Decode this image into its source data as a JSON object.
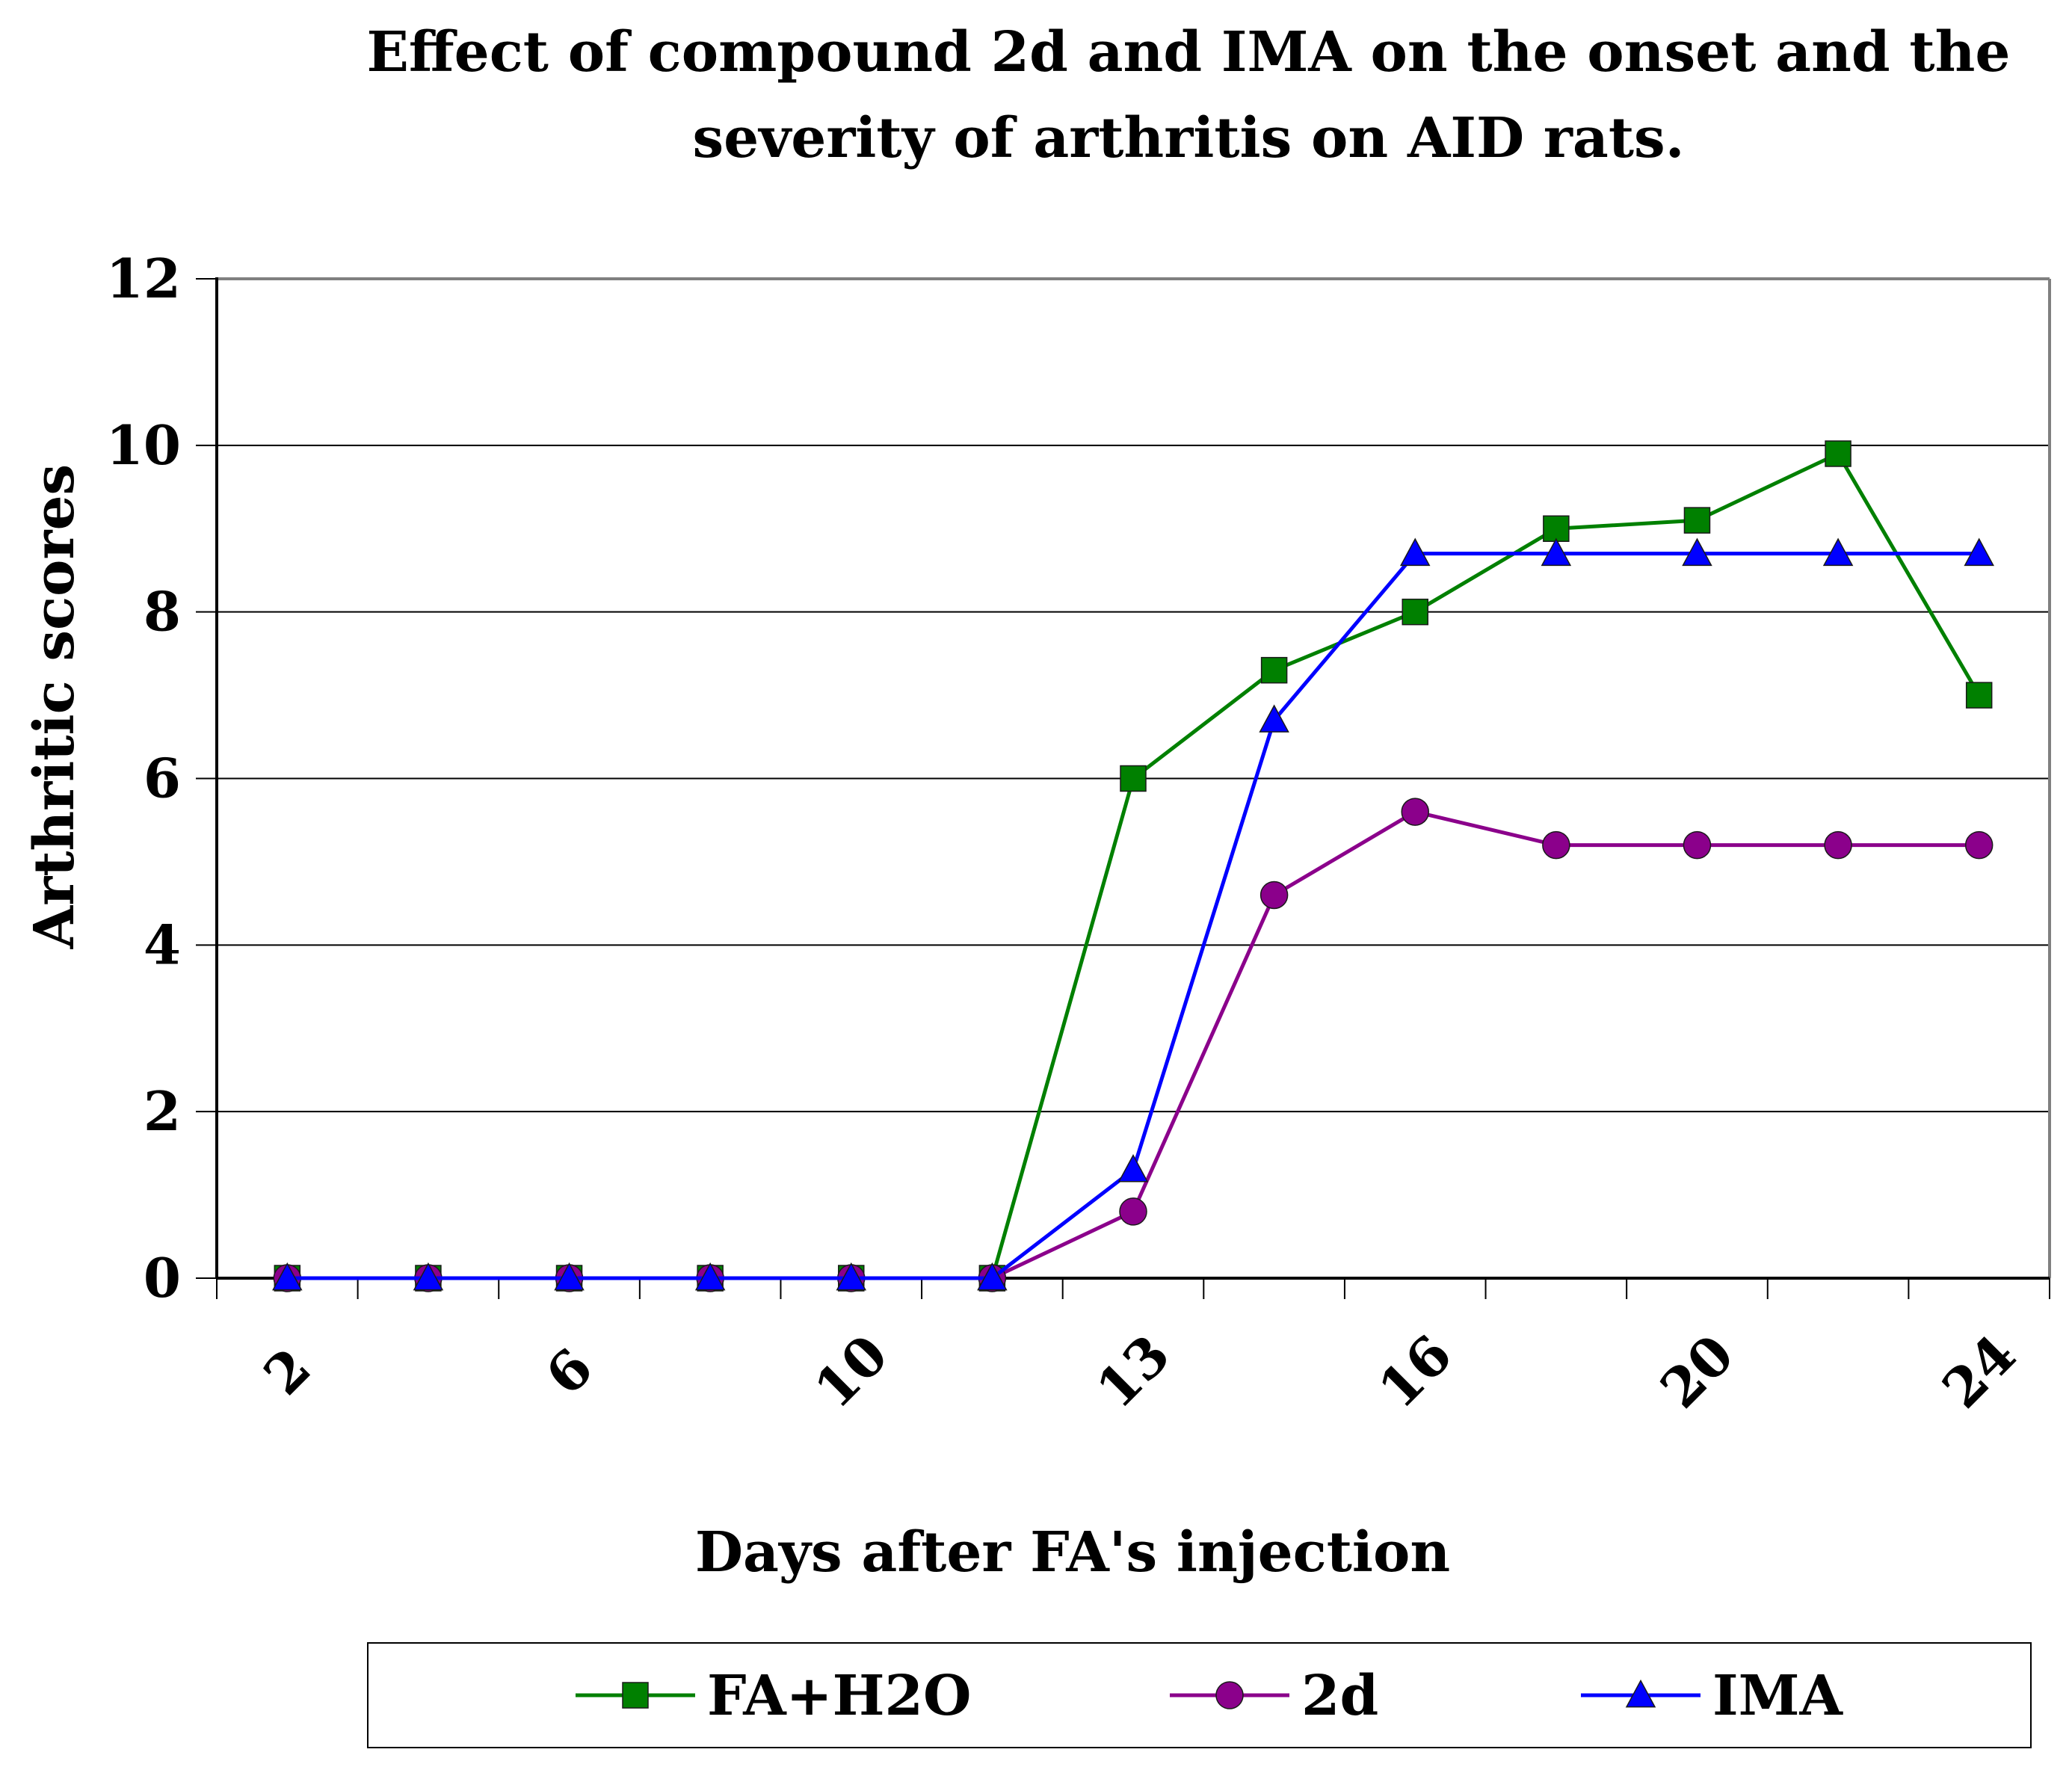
{
  "chart_data": {
    "type": "line",
    "title_lines": [
      "Effect of compound 2d and IMA on the onset and the",
      "severity of arthritis on AID rats."
    ],
    "xlabel": "Days after FA's injection",
    "ylabel": "Arthritic scores",
    "categories": [
      "2",
      "",
      "6",
      "",
      "10",
      "",
      "13",
      "",
      "16",
      "",
      "20",
      "",
      "24"
    ],
    "ylim": [
      0,
      12
    ],
    "yticks": [
      "0",
      "2",
      "4",
      "6",
      "8",
      "10",
      "12"
    ],
    "grid": "horizontal",
    "legend_position": "bottom",
    "series": [
      {
        "name": "FA+H2O",
        "color": "#008000",
        "marker": "square",
        "values": [
          0,
          0,
          0,
          0,
          0,
          0,
          6.0,
          7.3,
          8.0,
          9.0,
          9.1,
          9.9,
          7.0
        ]
      },
      {
        "name": "2d",
        "color": "#8B008B",
        "marker": "circle",
        "values": [
          0,
          0,
          0,
          0,
          0,
          0,
          0.8,
          4.6,
          5.6,
          5.2,
          5.2,
          5.2,
          5.2
        ]
      },
      {
        "name": "IMA",
        "color": "#0000FF",
        "marker": "triangle",
        "values": [
          0,
          0,
          0,
          0,
          0,
          0,
          1.3,
          6.7,
          8.7,
          8.7,
          8.7,
          8.7,
          8.7
        ]
      }
    ]
  }
}
